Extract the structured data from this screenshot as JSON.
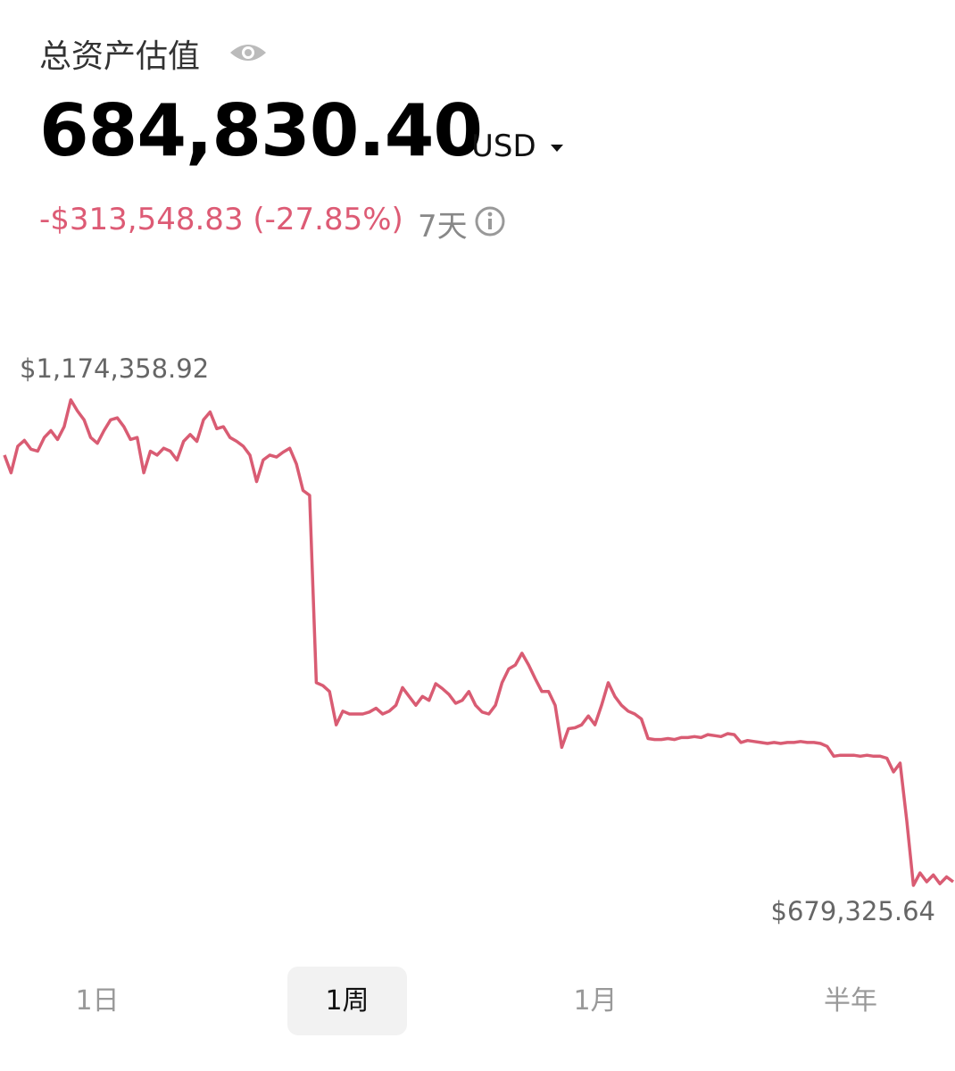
{
  "header": {
    "title": "总资产估值",
    "balance": "684,830.40",
    "currency": "USD",
    "change": "-$313,548.83 (-27.85%)",
    "period": "7天"
  },
  "chart_data": {
    "type": "line",
    "color": "#d95c73",
    "values": [
      1118000,
      1100000,
      1127000,
      1133000,
      1124000,
      1122000,
      1136000,
      1143000,
      1134000,
      1147000,
      1174358.92,
      1163000,
      1154000,
      1136000,
      1130000,
      1143000,
      1154000,
      1156000,
      1147000,
      1134000,
      1136000,
      1100000,
      1122000,
      1118000,
      1125000,
      1122000,
      1113000,
      1132000,
      1139000,
      1132000,
      1154000,
      1162000,
      1145000,
      1147000,
      1136000,
      1132000,
      1127000,
      1118000,
      1091000,
      1113000,
      1118000,
      1116000,
      1121000,
      1125000,
      1109000,
      1082000,
      1077000,
      886000,
      883000,
      877000,
      843000,
      857000,
      854000,
      854000,
      854000,
      856000,
      860000,
      854000,
      857000,
      863000,
      881000,
      872000,
      863000,
      872000,
      868000,
      885000,
      880000,
      874000,
      865000,
      868000,
      877000,
      863000,
      856000,
      854000,
      863000,
      886000,
      900000,
      904000,
      916000,
      904000,
      890000,
      877000,
      877000,
      863000,
      820000,
      839000,
      840000,
      843000,
      852000,
      843000,
      863000,
      886000,
      872000,
      863000,
      857000,
      854000,
      849000,
      829000,
      828000,
      828000,
      829000,
      828000,
      830000,
      830000,
      831000,
      830000,
      833000,
      832000,
      831000,
      834000,
      833000,
      825000,
      827000,
      826000,
      825000,
      824000,
      825000,
      824000,
      825000,
      825000,
      826000,
      825000,
      825000,
      824000,
      821000,
      811000,
      812000,
      812000,
      812000,
      811000,
      812000,
      811000,
      811000,
      809000,
      795000,
      804000,
      745000,
      679325.64,
      692000,
      683000,
      690000,
      681000,
      688000,
      683000
    ],
    "annotations": {
      "max": "$1,174,358.92",
      "min": "$679,325.64"
    }
  },
  "tabs": {
    "items": [
      "1日",
      "1周",
      "1月",
      "半年"
    ],
    "selected": 1
  }
}
